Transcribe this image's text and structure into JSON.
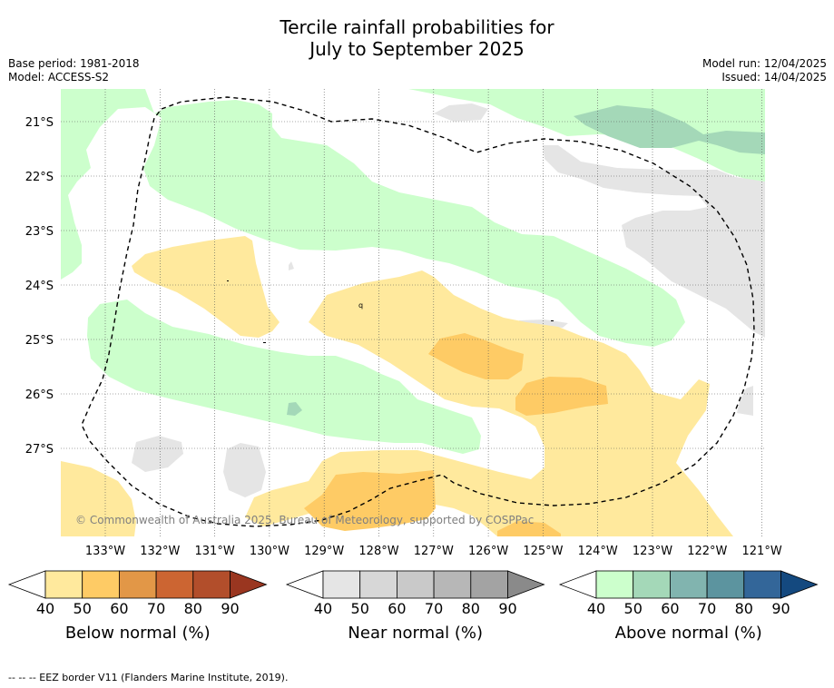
{
  "header": {
    "title_line1": "Tercile rainfall probabilities for",
    "title_line2": "July to September 2025",
    "base_period": "Base period: 1981-2018",
    "model": "Model: ACCESS-S2",
    "model_run": "Model run: 12/04/2025",
    "issued": "Issued: 14/04/2025"
  },
  "map": {
    "lat_labels": [
      "21°S",
      "22°S",
      "23°S",
      "24°S",
      "25°S",
      "26°S",
      "27°S"
    ],
    "lon_labels": [
      "133°W",
      "132°W",
      "131°W",
      "130°W",
      "129°W",
      "128°W",
      "127°W",
      "126°W",
      "125°W",
      "124°W",
      "123°W",
      "122°W",
      "121°W"
    ],
    "copyright": "© Commonwealth of Australia 2025, Bureau of Meteorology, supported by COSPPac",
    "colors": {
      "above_40": "#ccffcc",
      "above_50": "#a4d8b8",
      "near_40": "#e5e5e5",
      "below_40": "#ffe99d",
      "below_50": "#fecb65",
      "border": "#000000"
    }
  },
  "colorbars": [
    {
      "title": "Below normal (%)",
      "ticks": [
        "40",
        "50",
        "60",
        "70",
        "80",
        "90"
      ],
      "colors": [
        "#ffe99d",
        "#fecb65",
        "#e29747",
        "#cc6532",
        "#b24e2b",
        "#9a3620"
      ]
    },
    {
      "title": "Near normal (%)",
      "ticks": [
        "40",
        "50",
        "60",
        "70",
        "80",
        "90"
      ],
      "colors": [
        "#e5e5e5",
        "#d7d7d7",
        "#c9c9c9",
        "#b7b7b7",
        "#a3a3a3",
        "#8a8a8a"
      ]
    },
    {
      "title": "Above normal (%)",
      "ticks": [
        "40",
        "50",
        "60",
        "70",
        "80",
        "90"
      ],
      "colors": [
        "#ccffcc",
        "#a4d8b8",
        "#81b4af",
        "#5c949f",
        "#336699",
        "#14497f"
      ]
    }
  ],
  "footer": {
    "legend_line": "-- -- -- EEZ border V11 (Flanders Marine Institute, 2019)."
  }
}
